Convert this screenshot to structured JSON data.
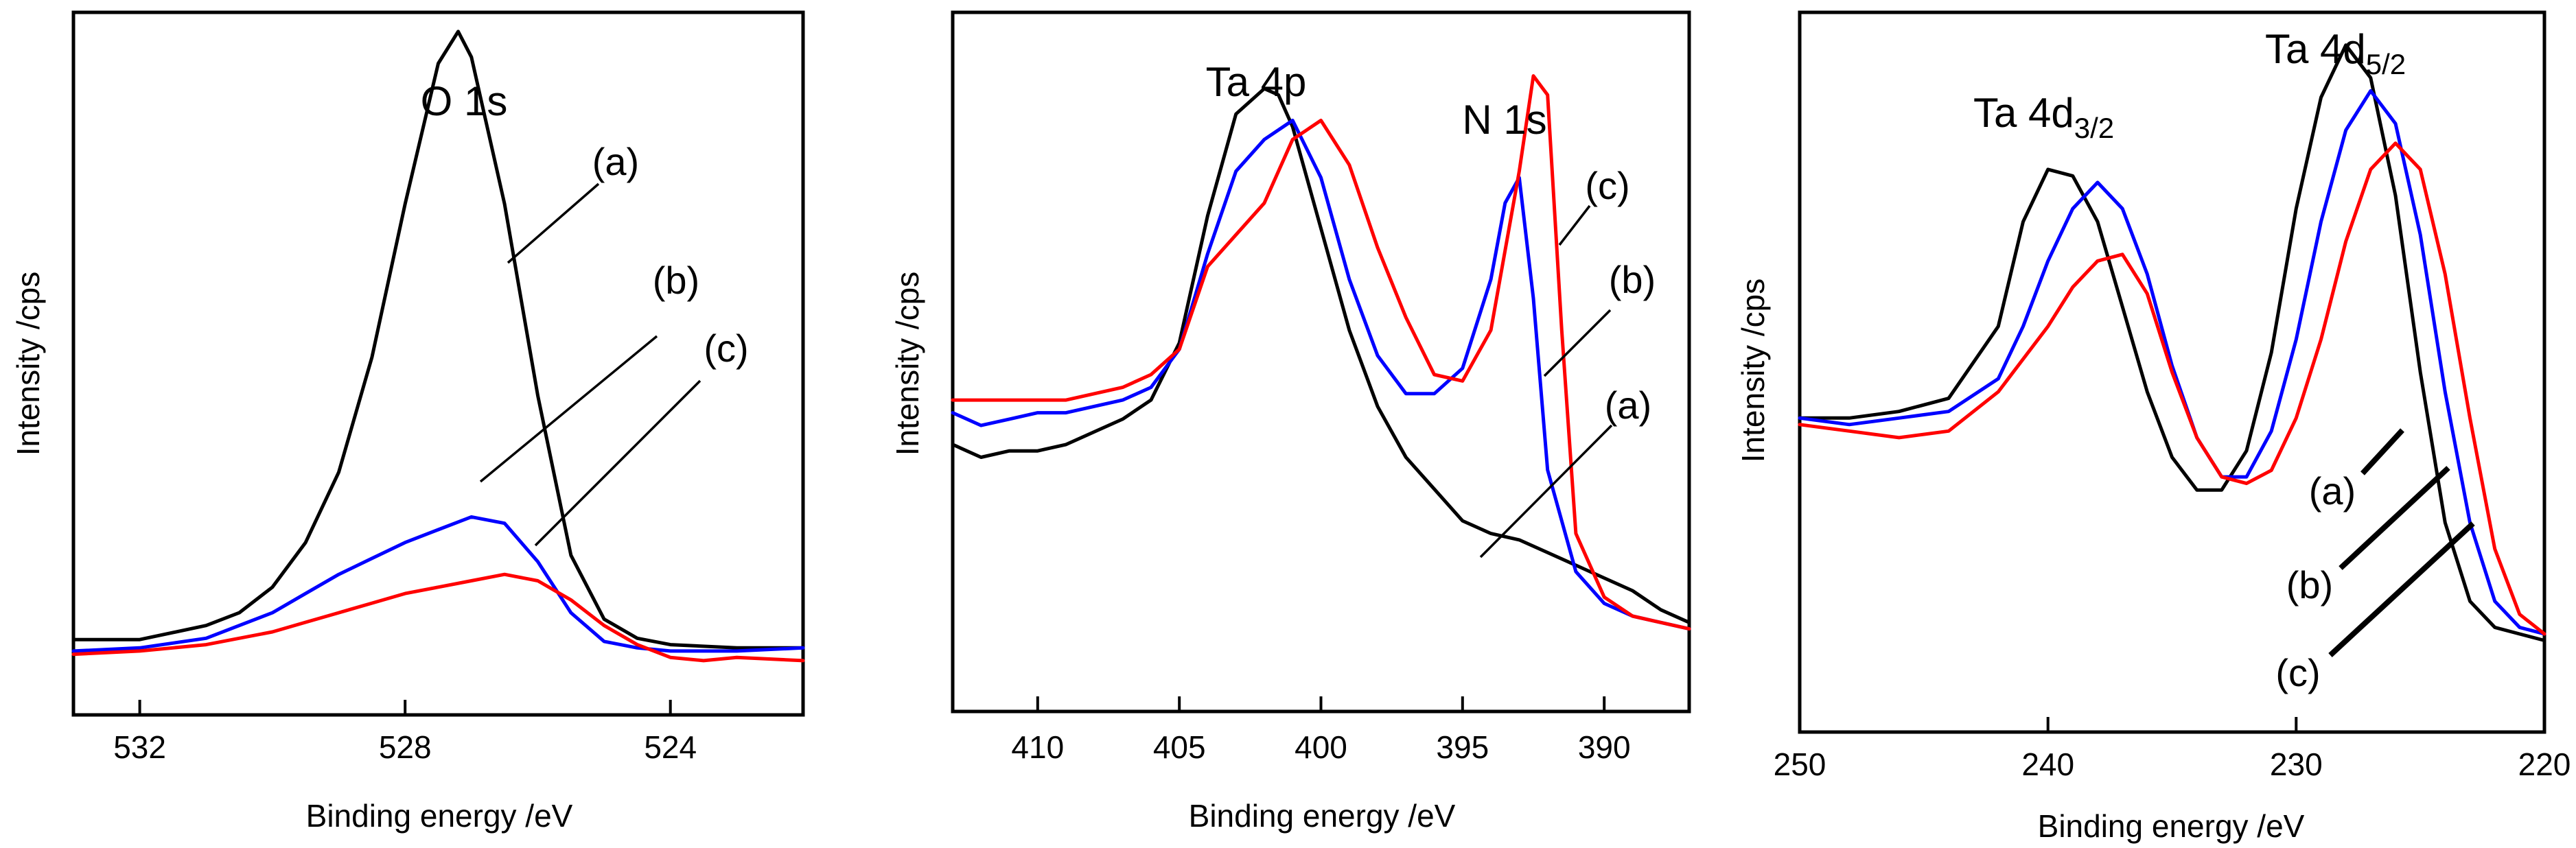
{
  "figure": {
    "type": "xps-spectra",
    "panels_count": 3
  },
  "chart_data": [
    {
      "type": "line",
      "title": "O 1s",
      "xlabel": "Binding energy /eV",
      "ylabel": "Intensity /cps",
      "xlim": [
        533.0,
        522.0
      ],
      "ylim": [
        -0.1,
        1.0
      ],
      "x_reversed": true,
      "ticks": [
        532,
        528,
        524
      ],
      "tick_labels": [
        "532",
        "528",
        "524"
      ],
      "series": [
        {
          "name": "(a)",
          "color": "#000000",
          "x": [
            533,
            532,
            531,
            530.5,
            530,
            529.5,
            529,
            528.5,
            528,
            527.5,
            527.2,
            527,
            526.5,
            526,
            525.5,
            525,
            524.5,
            524,
            523,
            522
          ],
          "y": [
            0.018,
            0.018,
            0.04,
            0.06,
            0.1,
            0.17,
            0.28,
            0.46,
            0.7,
            0.92,
            0.97,
            0.93,
            0.7,
            0.4,
            0.15,
            0.05,
            0.02,
            0.01,
            0.005,
            0.005
          ]
        },
        {
          "name": "(b)",
          "color": "#0000ff",
          "x": [
            533,
            532,
            531,
            530,
            529.5,
            529,
            528.5,
            528,
            527.5,
            527,
            526.5,
            526,
            525.5,
            525,
            524.5,
            524,
            523,
            522
          ],
          "y": [
            0.0,
            0.005,
            0.02,
            0.06,
            0.09,
            0.12,
            0.145,
            0.17,
            0.19,
            0.21,
            0.2,
            0.14,
            0.06,
            0.015,
            0.005,
            0.0,
            0.0,
            0.005
          ]
        },
        {
          "name": "(c)",
          "color": "#ff0000",
          "x": [
            533,
            532,
            531,
            530,
            529.5,
            529,
            528.5,
            528,
            527.5,
            527,
            526.5,
            526,
            525.5,
            525,
            524.5,
            524,
            523.5,
            523,
            522
          ],
          "y": [
            -0.005,
            0.0,
            0.01,
            0.03,
            0.045,
            0.06,
            0.075,
            0.09,
            0.1,
            0.11,
            0.12,
            0.11,
            0.08,
            0.04,
            0.01,
            -0.01,
            -0.015,
            -0.01,
            -0.015
          ]
        }
      ],
      "labels": [
        "O 1s",
        "(a)",
        "(b)",
        "(c)"
      ]
    },
    {
      "type": "line",
      "title": "",
      "xlabel": "Binding energy /eV",
      "ylabel": "Intensity /cps",
      "xlim": [
        413.0,
        387.0
      ],
      "ylim": [
        -0.1,
        1.0
      ],
      "x_reversed": true,
      "ticks": [
        410,
        405,
        400,
        395,
        390
      ],
      "tick_labels": [
        "410",
        "405",
        "400",
        "395",
        "390"
      ],
      "peak_labels": [
        "Ta 4p",
        "N 1s"
      ],
      "series": [
        {
          "name": "(a)",
          "color": "#000000",
          "x": [
            413,
            412,
            411,
            410,
            409,
            408,
            407,
            406,
            405,
            404,
            403,
            402,
            401.5,
            401,
            400,
            399,
            398,
            397,
            396,
            395,
            394,
            393,
            392,
            391,
            390,
            389,
            388,
            387
          ],
          "y": [
            0.32,
            0.3,
            0.31,
            0.31,
            0.32,
            0.34,
            0.36,
            0.39,
            0.48,
            0.68,
            0.84,
            0.88,
            0.87,
            0.82,
            0.66,
            0.5,
            0.38,
            0.3,
            0.25,
            0.2,
            0.18,
            0.17,
            0.15,
            0.13,
            0.11,
            0.09,
            0.06,
            0.04
          ]
        },
        {
          "name": "(b)",
          "color": "#0000ff",
          "x": [
            413,
            412,
            411,
            410,
            409,
            408,
            407,
            406,
            405,
            404,
            403,
            402,
            401,
            400,
            399,
            398,
            397,
            396,
            395,
            394,
            393.5,
            393,
            392.5,
            392,
            391,
            390,
            389,
            388,
            387
          ],
          "y": [
            0.37,
            0.35,
            0.36,
            0.37,
            0.37,
            0.38,
            0.39,
            0.41,
            0.47,
            0.62,
            0.75,
            0.8,
            0.83,
            0.74,
            0.58,
            0.46,
            0.4,
            0.4,
            0.44,
            0.58,
            0.7,
            0.74,
            0.55,
            0.28,
            0.12,
            0.07,
            0.05,
            0.04,
            0.03
          ]
        },
        {
          "name": "(c)",
          "color": "#ff0000",
          "x": [
            413,
            412,
            411,
            410,
            409,
            408,
            407,
            406,
            405,
            404,
            403,
            402,
            401,
            400,
            399,
            398,
            397,
            396,
            395,
            394,
            393,
            392.5,
            392,
            391.5,
            391,
            390,
            389,
            388,
            387
          ],
          "y": [
            0.39,
            0.39,
            0.39,
            0.39,
            0.39,
            0.4,
            0.41,
            0.43,
            0.47,
            0.6,
            0.65,
            0.7,
            0.8,
            0.83,
            0.76,
            0.63,
            0.52,
            0.43,
            0.42,
            0.5,
            0.75,
            0.9,
            0.87,
            0.5,
            0.18,
            0.08,
            0.05,
            0.04,
            0.03
          ]
        }
      ],
      "labels": [
        "(c)",
        "(b)",
        "(a)"
      ]
    },
    {
      "type": "line",
      "title": "",
      "xlabel": "Binding energy /eV",
      "ylabel": "Intensity /cps",
      "xlim": [
        250.0,
        220.0
      ],
      "ylim": [
        -0.1,
        1.0
      ],
      "x_reversed": true,
      "ticks": [
        250,
        240,
        230,
        220
      ],
      "tick_labels": [
        "250",
        "240",
        "230",
        "220"
      ],
      "peak_labels": [
        "Ta 4d",
        "3/2",
        "Ta 4d",
        "5/2"
      ],
      "series": [
        {
          "name": "(a)",
          "color": "#000000",
          "x": [
            250,
            248,
            246,
            244,
            242,
            241,
            240,
            239,
            238,
            237,
            236,
            235,
            234,
            233,
            232,
            231,
            230,
            229,
            228,
            227,
            226,
            225,
            224,
            223,
            222,
            221,
            220
          ],
          "y": [
            0.38,
            0.38,
            0.39,
            0.41,
            0.52,
            0.68,
            0.76,
            0.75,
            0.68,
            0.55,
            0.42,
            0.32,
            0.27,
            0.27,
            0.33,
            0.48,
            0.7,
            0.87,
            0.95,
            0.9,
            0.72,
            0.45,
            0.22,
            0.1,
            0.06,
            0.05,
            0.04
          ]
        },
        {
          "name": "(b)",
          "color": "#0000ff",
          "x": [
            250,
            248,
            246,
            244,
            242,
            241,
            240,
            239,
            238,
            237,
            236,
            235,
            234,
            233,
            232,
            231,
            230,
            229,
            228,
            227,
            226,
            225,
            224,
            223,
            222,
            221,
            220
          ],
          "y": [
            0.38,
            0.37,
            0.38,
            0.39,
            0.44,
            0.52,
            0.62,
            0.7,
            0.74,
            0.7,
            0.6,
            0.46,
            0.35,
            0.29,
            0.29,
            0.36,
            0.5,
            0.68,
            0.82,
            0.88,
            0.83,
            0.66,
            0.42,
            0.22,
            0.1,
            0.06,
            0.05
          ]
        },
        {
          "name": "(c)",
          "color": "#ff0000",
          "x": [
            250,
            248,
            246,
            244,
            242,
            241,
            240,
            239,
            238,
            237,
            236,
            235,
            234,
            233,
            232,
            231,
            230,
            229,
            228,
            227,
            226,
            225,
            224,
            223,
            222,
            221,
            220
          ],
          "y": [
            0.37,
            0.36,
            0.35,
            0.36,
            0.42,
            0.47,
            0.52,
            0.58,
            0.62,
            0.63,
            0.57,
            0.45,
            0.35,
            0.29,
            0.28,
            0.3,
            0.38,
            0.5,
            0.65,
            0.76,
            0.8,
            0.76,
            0.6,
            0.38,
            0.18,
            0.08,
            0.05
          ]
        }
      ],
      "labels": [
        "(a)",
        "(b)",
        "(c)"
      ]
    }
  ]
}
